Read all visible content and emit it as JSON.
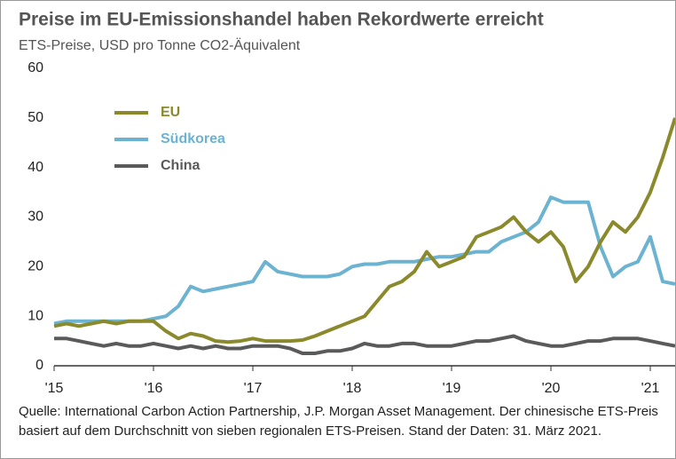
{
  "chart_data": {
    "type": "line",
    "title": "Preise im EU-Emissionshandel haben Rekordwerte erreicht",
    "subtitle": "ETS-Preise, USD pro Tonne CO2-Äquivalent",
    "note": "Quelle: International Carbon Action Partnership, J.P. Morgan Asset Management. Der chinesische ETS-Preis basiert auf dem Durchschnitt von sieben regionalen ETS-Preisen. Stand der Daten: 31. März 2021.",
    "x": [
      2015,
      2015.125,
      2015.25,
      2015.375,
      2015.5,
      2015.625,
      2015.75,
      2015.875,
      2016,
      2016.125,
      2016.25,
      2016.375,
      2016.5,
      2016.625,
      2016.75,
      2016.875,
      2017,
      2017.125,
      2017.25,
      2017.375,
      2017.5,
      2017.625,
      2017.75,
      2017.875,
      2018,
      2018.125,
      2018.25,
      2018.375,
      2018.5,
      2018.625,
      2018.75,
      2018.875,
      2019,
      2019.125,
      2019.25,
      2019.375,
      2019.5,
      2019.625,
      2019.75,
      2019.875,
      2020,
      2020.125,
      2020.25,
      2020.375,
      2020.5,
      2020.625,
      2020.75,
      2020.875,
      2021,
      2021.125,
      2021.25
    ],
    "series": [
      {
        "name": "EU",
        "color": "#8a8a2c",
        "values": [
          8,
          8.5,
          8,
          8.5,
          9,
          8.5,
          9,
          9,
          9,
          7,
          5.5,
          6.5,
          6,
          5,
          4.8,
          5,
          5.5,
          5,
          5,
          5,
          5.2,
          6,
          7,
          8,
          9,
          10,
          13,
          16,
          17,
          19,
          23,
          20,
          21,
          22,
          26,
          27,
          28,
          30,
          27,
          25,
          27,
          24,
          17,
          20,
          25,
          29,
          27,
          30,
          35,
          42,
          50
        ]
      },
      {
        "name": "Südkorea",
        "color": "#6cb2d1",
        "values": [
          8.5,
          9,
          9,
          9,
          9,
          9,
          9,
          9,
          9.5,
          10,
          12,
          16,
          15,
          15.5,
          16,
          16.5,
          17,
          21,
          19,
          18.5,
          18,
          18,
          18,
          18.5,
          20,
          20.5,
          20.5,
          21,
          21,
          21,
          21.5,
          22,
          22,
          22.5,
          23,
          23,
          25,
          26,
          27,
          29,
          34,
          33,
          33,
          33,
          24,
          18,
          20,
          21,
          26,
          17,
          16.5
        ]
      },
      {
        "name": "China",
        "color": "#5a5a5a",
        "values": [
          5.5,
          5.5,
          5,
          4.5,
          4,
          4.5,
          4,
          4,
          4.5,
          4,
          3.5,
          4,
          3.5,
          4,
          3.5,
          3.5,
          4,
          4,
          4,
          3.5,
          2.5,
          2.5,
          3,
          3,
          3.5,
          4.5,
          4,
          4,
          4.5,
          4.5,
          4,
          4,
          4,
          4.5,
          5,
          5,
          5.5,
          6,
          5,
          4.5,
          4,
          4,
          4.5,
          5,
          5,
          5.5,
          5.5,
          5.5,
          5,
          4.5,
          4
        ]
      }
    ],
    "xlim": [
      2015,
      2021.25
    ],
    "xticks": [
      {
        "value": 2015,
        "label": "'15"
      },
      {
        "value": 2016,
        "label": "'16"
      },
      {
        "value": 2017,
        "label": "'17"
      },
      {
        "value": 2018,
        "label": "'18"
      },
      {
        "value": 2019,
        "label": "'19"
      },
      {
        "value": 2020,
        "label": "'20"
      },
      {
        "value": 2021,
        "label": "'21"
      }
    ],
    "ylim": [
      0,
      60
    ],
    "yticks": [
      0,
      10,
      20,
      30,
      40,
      50,
      60
    ],
    "grid": false,
    "legend": "upper left"
  }
}
